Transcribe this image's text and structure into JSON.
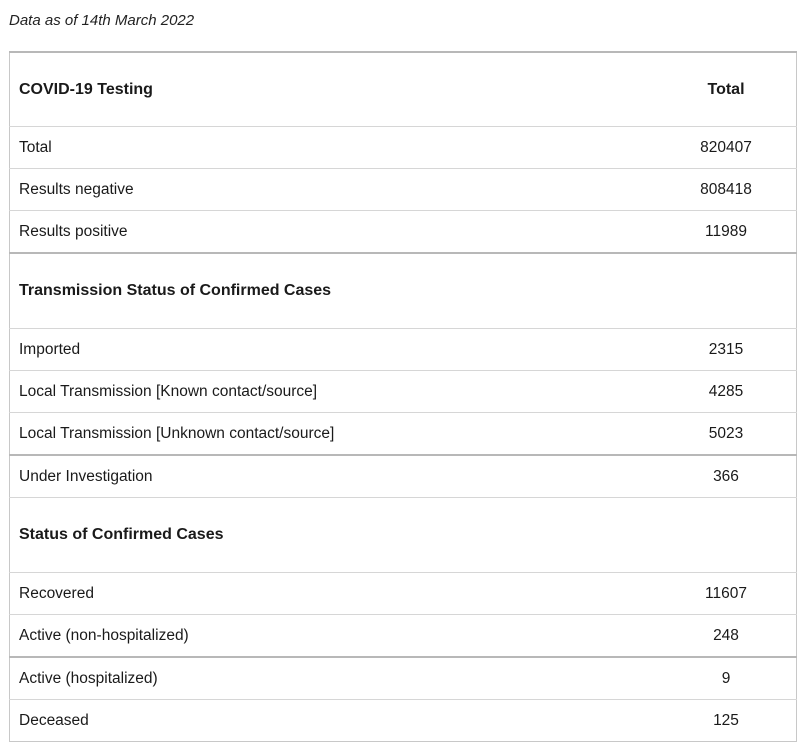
{
  "caption": "Data as of 14th March 2022",
  "table": {
    "header": {
      "label": "COVID-19 Testing",
      "value_label": "Total"
    },
    "testing_rows": [
      {
        "label": "Total",
        "value": "820407"
      },
      {
        "label": "Results negative",
        "value": "808418"
      },
      {
        "label": "Results positive",
        "value": "11989"
      }
    ],
    "transmission_heading": "Transmission Status of Confirmed Cases",
    "transmission_rows": [
      {
        "label": "Imported",
        "value": "2315"
      },
      {
        "label": "Local Transmission [Known contact/source]",
        "value": "4285"
      },
      {
        "label": "Local Transmission [Unknown contact/source]",
        "value": "5023"
      },
      {
        "label": "Under Investigation",
        "value": "366"
      }
    ],
    "status_heading": "Status of Confirmed Cases",
    "status_rows": [
      {
        "label": "Recovered",
        "value": "11607"
      },
      {
        "label": "Active (non-hospitalized)",
        "value": "248"
      },
      {
        "label": "Active (hospitalized)",
        "value": "9"
      },
      {
        "label": "Deceased",
        "value": "125"
      }
    ]
  }
}
